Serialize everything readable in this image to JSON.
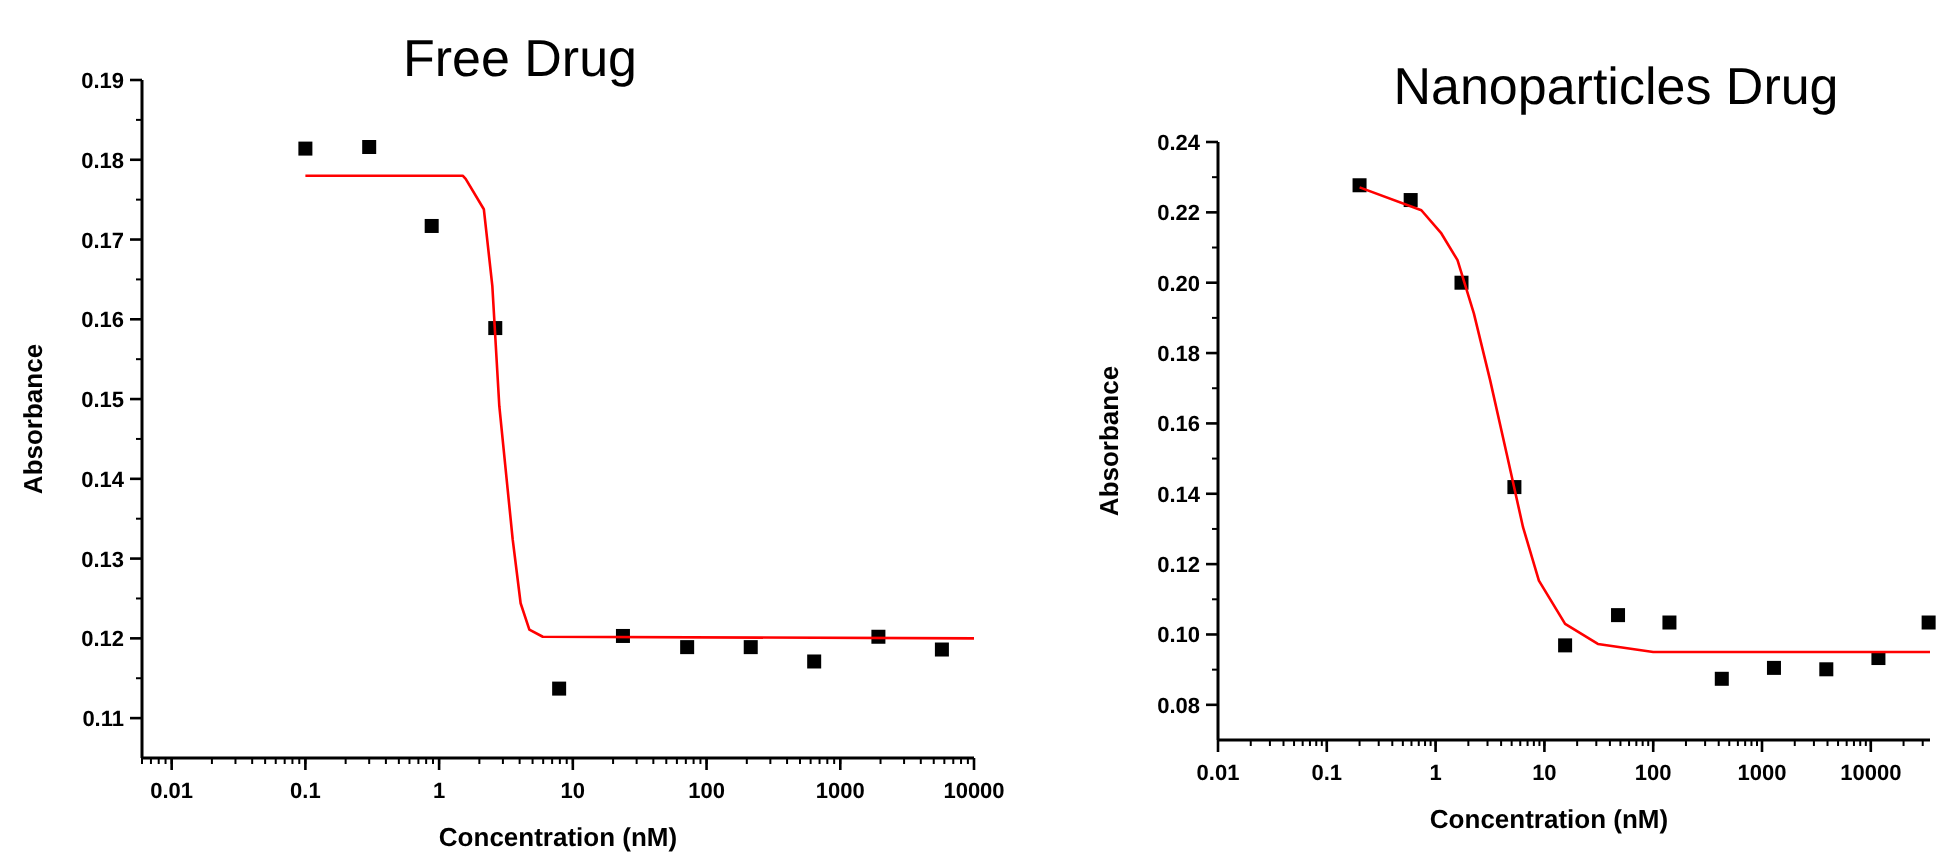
{
  "chart_data": [
    {
      "type": "scatter",
      "title": "Free Drug",
      "xlabel": "Concentration (nM)",
      "ylabel": "Absorbance",
      "log": "x",
      "xlim": [
        0.006,
        10000
      ],
      "ylim": [
        0.105,
        0.19
      ],
      "xticks": [
        0.01,
        0.1,
        1,
        10,
        100,
        1000,
        10000
      ],
      "yticks": [
        0.11,
        0.12,
        0.13,
        0.14,
        0.15,
        0.16,
        0.17,
        0.18,
        0.19
      ],
      "grid": false,
      "series": [
        {
          "marker": "square",
          "color": "#000000",
          "x": [
            0.1,
            0.3,
            0.88,
            2.63,
            7.9,
            23.7,
            71.6,
            214,
            638,
            1928,
            5754
          ],
          "values": [
            0.1814,
            0.1816,
            0.1717,
            0.1589,
            0.1137,
            0.1203,
            0.1189,
            0.1189,
            0.1171,
            0.1202,
            0.1186
          ]
        },
        {
          "type": "line",
          "marker": "none",
          "line_style": "solid",
          "color": "#ff0000",
          "x": [
            0.1,
            1.5,
            1.58,
            2.16,
            2.5,
            2.82,
            3.55,
            4.07,
            4.73,
            5.96,
            10000
          ],
          "values": [
            0.178,
            0.178,
            0.1776,
            0.1738,
            0.1642,
            0.1491,
            0.1324,
            0.1244,
            0.1211,
            0.1202,
            0.12
          ]
        }
      ]
    },
    {
      "type": "scatter",
      "title": "Nanoparticles Drug",
      "xlabel": "Concentration (nM)",
      "ylabel": "Absorbance",
      "log": "x",
      "xlim": [
        0.01,
        35000
      ],
      "ylim": [
        0.07,
        0.24
      ],
      "xticks": [
        0.01,
        0.1,
        1,
        10,
        100,
        1000,
        10000
      ],
      "yticks": [
        0.08,
        {
          "value": 0.1,
          "label": "0.10"
        },
        0.12,
        0.14,
        0.16,
        0.18,
        {
          "value": 0.2,
          "label": "0.20"
        },
        0.22,
        0.24
      ],
      "grid": false,
      "series": [
        {
          "marker": "square",
          "color": "#000000",
          "x": [
            0.2,
            0.59,
            1.73,
            5.3,
            15.5,
            47.5,
            141,
            427,
            1288,
            3900,
            11750,
            34000
          ],
          "values": [
            0.2277,
            0.2235,
            0.2,
            0.1419,
            0.0969,
            0.1055,
            0.1034,
            0.0874,
            0.0905,
            0.0901,
            0.0933,
            0.1034
          ]
        },
        {
          "type": "line",
          "marker": "none",
          "line_style": "solid",
          "color": "#ff0000",
          "x": [
            0.2,
            0.74,
            1.13,
            1.59,
            2.25,
            3.17,
            4.5,
            6.36,
            8.9,
            15.5,
            31,
            100,
            35000
          ],
          "values": [
            0.2271,
            0.2206,
            0.214,
            0.2064,
            0.1912,
            0.1723,
            0.1514,
            0.1305,
            0.1153,
            0.103,
            0.0973,
            0.095,
            0.095
          ]
        }
      ]
    }
  ]
}
